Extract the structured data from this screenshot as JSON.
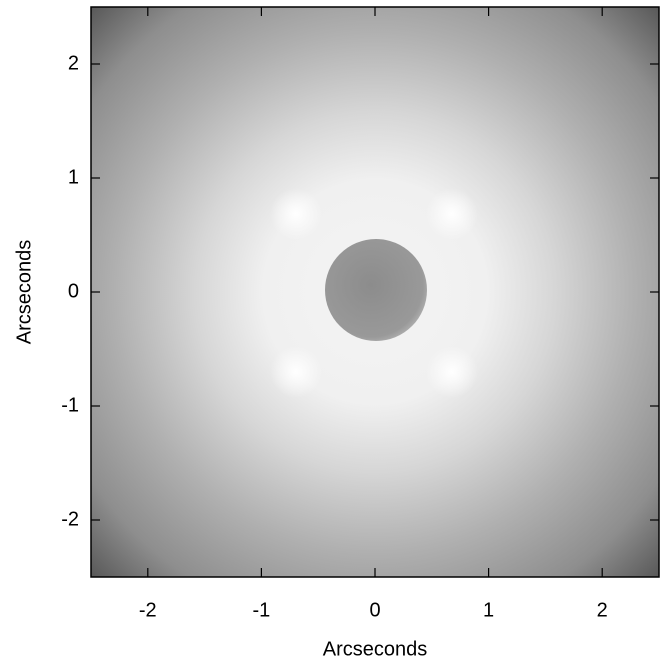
{
  "chart_data": {
    "type": "image",
    "x_label": "Arcseconds",
    "y_label": "Arcseconds",
    "xlim": [
      -2.5,
      2.5
    ],
    "ylim": [
      -2.5,
      2.5
    ],
    "xticks": [
      -2,
      -1,
      0,
      1,
      2
    ],
    "yticks": [
      -2,
      -1,
      0,
      1,
      2
    ],
    "colormap": "gray"
  }
}
